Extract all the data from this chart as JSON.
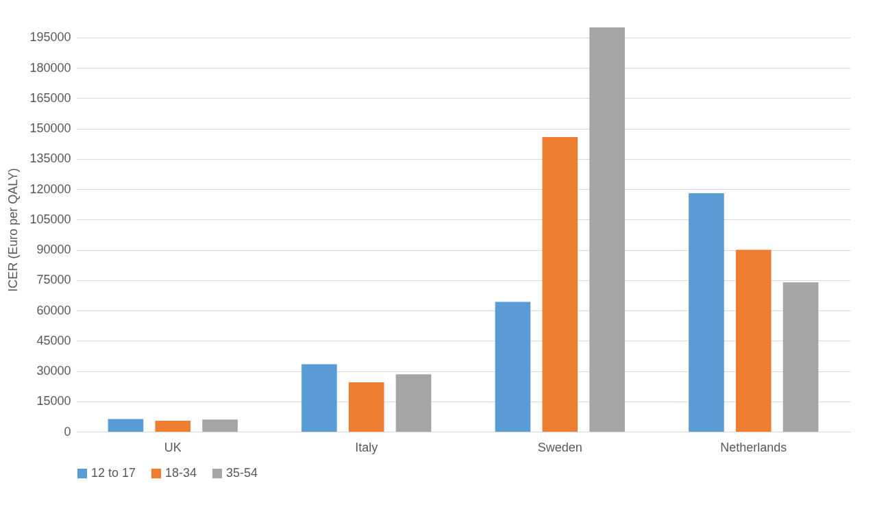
{
  "chart_data": {
    "type": "bar",
    "ylabel": "ICER (Euro per QALY)",
    "categories": [
      "UK",
      "Italy",
      "Sweden",
      "Netherlands"
    ],
    "series": [
      {
        "name": "12 to 17",
        "color": "#5b9bd5",
        "values": [
          6300,
          33400,
          64200,
          118000
        ]
      },
      {
        "name": "18-34",
        "color": "#ed7d31",
        "values": [
          5400,
          24400,
          145800,
          90000
        ]
      },
      {
        "name": "35-54",
        "color": "#a5a5a5",
        "values": [
          6000,
          28400,
          200000,
          73900
        ]
      }
    ],
    "ylim": [
      0,
      200000
    ],
    "yticks": [
      0,
      15000,
      30000,
      45000,
      60000,
      75000,
      90000,
      105000,
      120000,
      135000,
      150000,
      165000,
      180000,
      195000
    ],
    "grid": "y",
    "legend": "bottom"
  }
}
